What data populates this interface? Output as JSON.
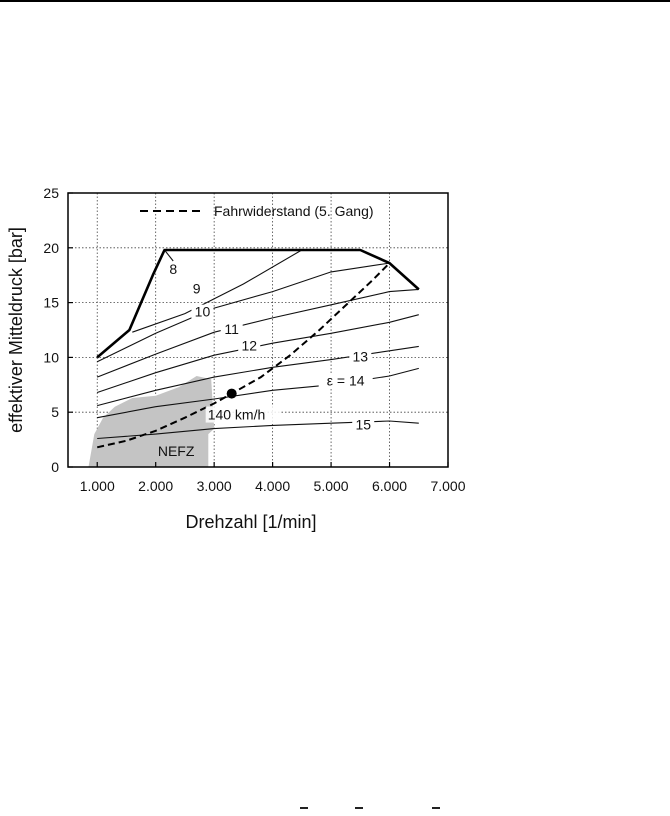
{
  "chart_data": {
    "type": "line",
    "xlabel": "Drehzahl [1/min]",
    "ylabel": "effektiver Mitteldruck [bar]",
    "xlim": [
      500,
      7000
    ],
    "ylim": [
      0,
      25
    ],
    "x_ticks": [
      1000,
      2000,
      3000,
      4000,
      5000,
      6000,
      7000
    ],
    "x_tick_labels": [
      "1.000",
      "2.000",
      "3.000",
      "4.000",
      "5.000",
      "6.000",
      "7.000"
    ],
    "y_ticks": [
      0,
      5,
      10,
      15,
      20,
      25
    ],
    "y_tick_labels": [
      "0",
      "5",
      "10",
      "15",
      "20",
      "25"
    ],
    "grid": true,
    "legend": {
      "position": "top-right",
      "entries": [
        {
          "label": "Fahrwiderstand (5. Gang)",
          "style": "dashed"
        }
      ]
    },
    "full_load_curve": {
      "x": [
        1000,
        1550,
        1750,
        1950,
        2150,
        5500,
        6000,
        6500
      ],
      "y": [
        10,
        12.5,
        15,
        17.5,
        19.8,
        19.8,
        18.6,
        16.2
      ]
    },
    "road_load_curve": {
      "name": "Fahrwiderstand (5. Gang)",
      "x": [
        1000,
        1500,
        2000,
        2500,
        3000,
        3300,
        3800,
        4300,
        4800,
        5300,
        5700,
        6000
      ],
      "y": [
        1.8,
        2.4,
        3.3,
        4.5,
        5.8,
        6.7,
        8.2,
        10.2,
        12.5,
        15,
        17,
        18.6
      ]
    },
    "compression_ratio_lines": [
      {
        "name": "8",
        "label": "8",
        "x": [
          2150,
          2300
        ],
        "y": [
          19.8,
          18.8
        ]
      },
      {
        "name": "9",
        "label": "9",
        "x": [
          1600,
          2500,
          3500,
          4500
        ],
        "y": [
          12.3,
          14.0,
          16.7,
          19.8
        ]
      },
      {
        "name": "10",
        "label": "10",
        "x": [
          1000,
          2000,
          3000,
          4000,
          5000,
          6000
        ],
        "y": [
          9.6,
          12.2,
          14.5,
          16.0,
          17.8,
          18.6
        ]
      },
      {
        "name": "11",
        "label": "11",
        "x": [
          1000,
          2000,
          3000,
          4000,
          5000,
          6000,
          6500
        ],
        "y": [
          8.2,
          10.3,
          12.3,
          13.6,
          14.8,
          16.0,
          16.2
        ]
      },
      {
        "name": "12",
        "label": "12",
        "x": [
          1000,
          2000,
          3000,
          4000,
          5000,
          6000,
          6500
        ],
        "y": [
          6.8,
          8.6,
          10.2,
          11.3,
          12.2,
          13.2,
          13.9
        ]
      },
      {
        "name": "13",
        "label": "13",
        "x": [
          1000,
          2000,
          3000,
          4000,
          5000,
          6000,
          6500
        ],
        "y": [
          5.6,
          7.0,
          8.2,
          9.1,
          9.8,
          10.6,
          11.0
        ]
      },
      {
        "name": "14",
        "label": "ε = 14",
        "x": [
          1000,
          2000,
          3000,
          4000,
          5000,
          6000,
          6500
        ],
        "y": [
          4.5,
          5.5,
          6.2,
          7.0,
          7.5,
          8.3,
          9.0
        ]
      },
      {
        "name": "15",
        "label": "15",
        "x": [
          1000,
          2000,
          3000,
          4000,
          5000,
          6000,
          6500
        ],
        "y": [
          2.6,
          3.0,
          3.5,
          3.8,
          4.0,
          4.2,
          4.0
        ]
      }
    ],
    "nefz_area": {
      "label": "NEFZ",
      "x": [
        850,
        950,
        1100,
        1300,
        1600,
        2000,
        2400,
        2700,
        2950,
        3000,
        2900,
        2900,
        850
      ],
      "y": [
        0,
        3,
        4.5,
        5.5,
        6.3,
        6.5,
        7.3,
        8.3,
        8.0,
        3.5,
        3,
        0,
        0
      ]
    },
    "highlight_point": {
      "label": "140 km/h",
      "x": 3300,
      "y": 6.7
    }
  }
}
